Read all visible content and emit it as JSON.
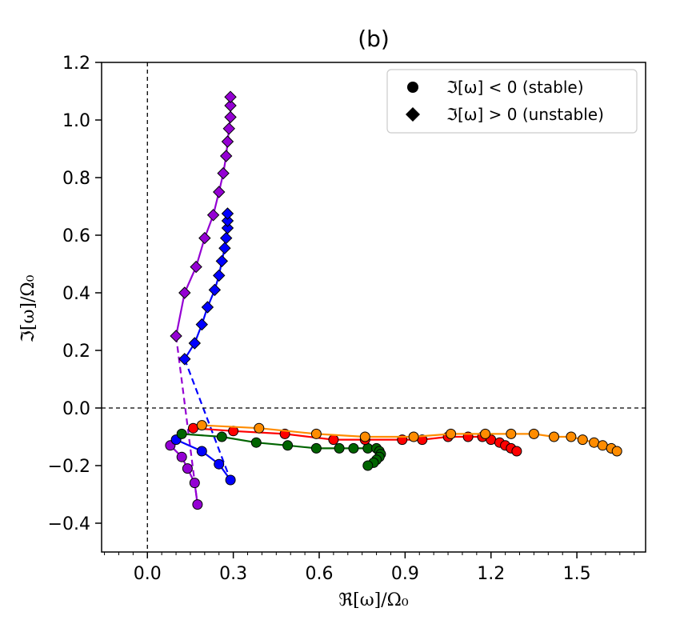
{
  "chart_data": {
    "type": "scatter",
    "title": "(b)",
    "xlabel": "ℜ[ω]/Ω₀",
    "ylabel": "ℑ[ω]/Ω₀",
    "xlim": [
      -0.16,
      1.74
    ],
    "ylim": [
      -0.5,
      1.2
    ],
    "xticks": [
      0.0,
      0.3,
      0.6,
      0.9,
      1.2,
      1.5
    ],
    "xtick_labels": [
      "0.0",
      "0.3",
      "0.6",
      "0.9",
      "1.2",
      "1.5"
    ],
    "yticks": [
      -0.4,
      -0.2,
      0.0,
      0.2,
      0.4,
      0.6,
      0.8,
      1.0,
      1.2
    ],
    "ytick_labels": [
      "−0.4",
      "−0.2",
      "0.0",
      "0.2",
      "0.4",
      "0.6",
      "0.8",
      "1.0",
      "1.2"
    ],
    "reference_lines": {
      "x": 0.0,
      "y": 0.0,
      "style": "dashed"
    },
    "legend": {
      "position": "top-right",
      "entries": [
        {
          "marker": "circle",
          "label": "ℑ[ω] < 0 (stable)"
        },
        {
          "marker": "diamond",
          "label": "ℑ[ω] > 0 (unstable)"
        }
      ]
    },
    "series": [
      {
        "color": "#9400d3",
        "unstable": [
          [
            0.1,
            0.25
          ],
          [
            0.13,
            0.4
          ],
          [
            0.17,
            0.49
          ],
          [
            0.2,
            0.59
          ],
          [
            0.23,
            0.67
          ],
          [
            0.25,
            0.75
          ],
          [
            0.265,
            0.815
          ],
          [
            0.275,
            0.875
          ],
          [
            0.28,
            0.925
          ],
          [
            0.285,
            0.97
          ],
          [
            0.29,
            1.01
          ],
          [
            0.29,
            1.05
          ],
          [
            0.29,
            1.08
          ]
        ],
        "stable": [
          [
            0.08,
            -0.13
          ],
          [
            0.12,
            -0.17
          ],
          [
            0.14,
            -0.21
          ],
          [
            0.165,
            -0.26
          ],
          [
            0.175,
            -0.335
          ]
        ],
        "connector": [
          [
            0.1,
            0.25
          ],
          [
            0.175,
            -0.335
          ]
        ]
      },
      {
        "color": "#0000ff",
        "unstable": [
          [
            0.13,
            0.17
          ],
          [
            0.165,
            0.225
          ],
          [
            0.19,
            0.29
          ],
          [
            0.21,
            0.35
          ],
          [
            0.235,
            0.41
          ],
          [
            0.25,
            0.46
          ],
          [
            0.26,
            0.51
          ],
          [
            0.27,
            0.555
          ],
          [
            0.275,
            0.59
          ],
          [
            0.28,
            0.625
          ],
          [
            0.28,
            0.65
          ],
          [
            0.28,
            0.675
          ]
        ],
        "stable": [
          [
            0.1,
            -0.11
          ],
          [
            0.19,
            -0.15
          ],
          [
            0.25,
            -0.195
          ],
          [
            0.29,
            -0.25
          ]
        ],
        "connector": [
          [
            0.13,
            0.17
          ],
          [
            0.29,
            -0.25
          ]
        ]
      },
      {
        "color": "#006400",
        "stable": [
          [
            0.12,
            -0.09
          ],
          [
            0.26,
            -0.1
          ],
          [
            0.38,
            -0.12
          ],
          [
            0.49,
            -0.13
          ],
          [
            0.59,
            -0.14
          ],
          [
            0.67,
            -0.14
          ],
          [
            0.72,
            -0.14
          ],
          [
            0.77,
            -0.14
          ],
          [
            0.8,
            -0.14
          ],
          [
            0.81,
            -0.15
          ],
          [
            0.815,
            -0.16
          ],
          [
            0.81,
            -0.17
          ],
          [
            0.8,
            -0.18
          ],
          [
            0.79,
            -0.19
          ],
          [
            0.77,
            -0.2
          ]
        ]
      },
      {
        "color": "#ff0000",
        "stable": [
          [
            0.16,
            -0.07
          ],
          [
            0.3,
            -0.08
          ],
          [
            0.48,
            -0.09
          ],
          [
            0.65,
            -0.11
          ],
          [
            0.76,
            -0.11
          ],
          [
            0.89,
            -0.11
          ],
          [
            0.96,
            -0.11
          ],
          [
            1.05,
            -0.1
          ],
          [
            1.12,
            -0.1
          ],
          [
            1.17,
            -0.1
          ],
          [
            1.2,
            -0.11
          ],
          [
            1.23,
            -0.12
          ],
          [
            1.25,
            -0.13
          ],
          [
            1.27,
            -0.14
          ],
          [
            1.29,
            -0.15
          ]
        ]
      },
      {
        "color": "#ff8c00",
        "stable": [
          [
            0.19,
            -0.06
          ],
          [
            0.39,
            -0.07
          ],
          [
            0.59,
            -0.09
          ],
          [
            0.76,
            -0.1
          ],
          [
            0.93,
            -0.1
          ],
          [
            1.06,
            -0.09
          ],
          [
            1.18,
            -0.09
          ],
          [
            1.27,
            -0.09
          ],
          [
            1.35,
            -0.09
          ],
          [
            1.42,
            -0.1
          ],
          [
            1.48,
            -0.1
          ],
          [
            1.52,
            -0.11
          ],
          [
            1.56,
            -0.12
          ],
          [
            1.59,
            -0.13
          ],
          [
            1.62,
            -0.14
          ],
          [
            1.64,
            -0.15
          ]
        ]
      }
    ]
  }
}
